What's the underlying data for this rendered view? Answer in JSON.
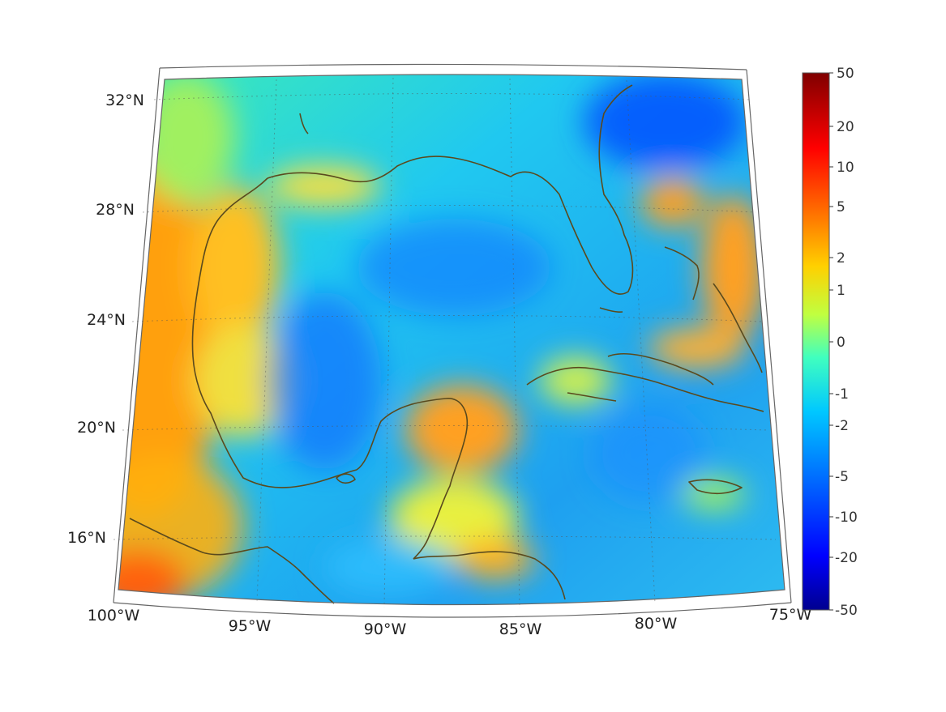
{
  "map": {
    "lat_labels": [
      "32°N",
      "28°N",
      "24°N",
      "20°N",
      "16°N"
    ],
    "lon_labels": [
      "100°W",
      "95°W",
      "90°W",
      "85°W",
      "80°W",
      "75°W"
    ],
    "colorbar_labels": [
      "50",
      "20",
      "10",
      "5",
      "2",
      "1",
      "0",
      "-1",
      "-2",
      "-5",
      "-10",
      "-20",
      "-50"
    ],
    "coastline_color": "#5a4a1e",
    "colormap": [
      "#00008f",
      "#0000ff",
      "#0070ff",
      "#00c8ff",
      "#40ffbf",
      "#c0ff40",
      "#ffd000",
      "#ff7000",
      "#ff0000",
      "#800000"
    ]
  }
}
